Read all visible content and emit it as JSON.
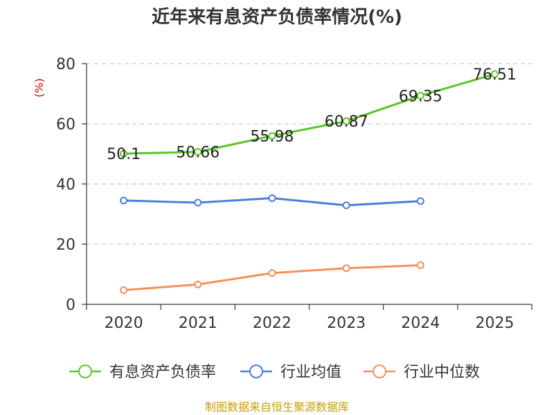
{
  "chart_data": {
    "type": "line",
    "title": "近年来有息资产负债率情况(%)",
    "ylabel": "(%)",
    "categories": [
      "2020",
      "2021",
      "2022",
      "2023",
      "2024",
      "2025"
    ],
    "ylim": [
      0,
      80
    ],
    "yticks": [
      0,
      20,
      40,
      60,
      80
    ],
    "grid": true,
    "legend_position": "bottom",
    "series": [
      {
        "name": "有息资产负债率",
        "color": "#5cc52a",
        "values": [
          50.1,
          50.66,
          55.98,
          60.87,
          69.35,
          76.51
        ],
        "labels": [
          "50.1",
          "50.66",
          "55.98",
          "60.87",
          "69.35",
          "76.51"
        ]
      },
      {
        "name": "行业均值",
        "color": "#4a7fd9",
        "values": [
          34.5,
          33.8,
          35.3,
          32.9,
          34.3,
          null
        ]
      },
      {
        "name": "行业中位数",
        "color": "#f5905a",
        "values": [
          4.7,
          6.6,
          10.4,
          12.0,
          13.0,
          null
        ]
      }
    ]
  },
  "source": "制图数据来自恒生聚源数据库"
}
